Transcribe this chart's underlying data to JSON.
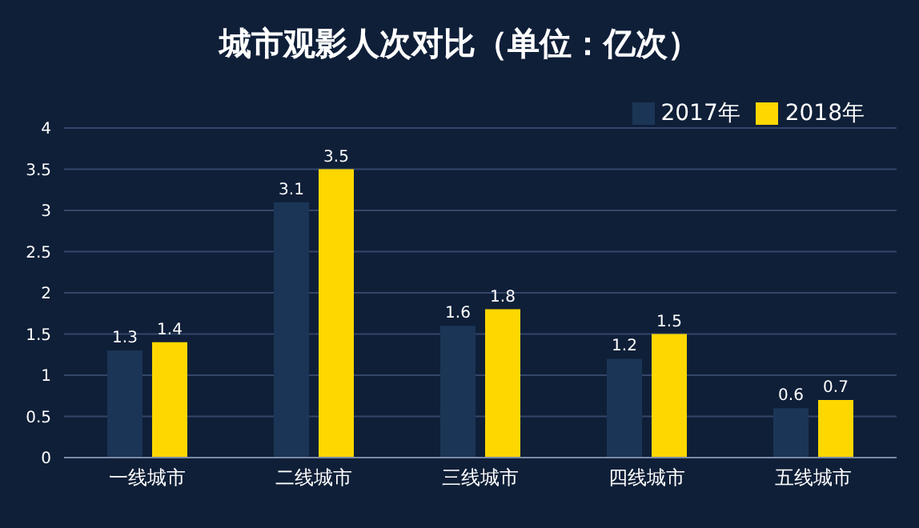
{
  "chart_data": {
    "type": "bar",
    "title": "城市观影人次对比（单位：亿次）",
    "categories": [
      "一线城市",
      "二线城市",
      "三线城市",
      "四线城市",
      "五线城市"
    ],
    "series": [
      {
        "name": "2017年",
        "color": "#1b3556",
        "values": [
          1.3,
          3.1,
          1.6,
          1.2,
          0.6
        ]
      },
      {
        "name": "2018年",
        "color": "#ffd700",
        "values": [
          1.4,
          3.5,
          1.8,
          1.5,
          0.7
        ]
      }
    ],
    "ylim": [
      0,
      4
    ],
    "yticks": [
      0,
      0.5,
      1,
      1.5,
      2,
      2.5,
      3,
      3.5,
      4
    ],
    "grid": "y",
    "legend": "top right",
    "data_labels": true
  }
}
